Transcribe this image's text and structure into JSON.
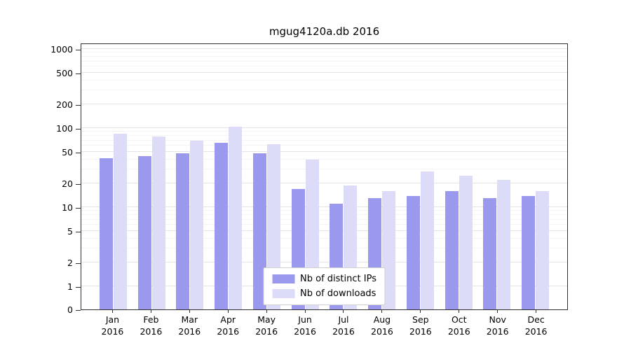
{
  "chart_data": {
    "type": "bar",
    "title": "mgug4120a.db 2016",
    "categories": [
      "Jan",
      "Feb",
      "Mar",
      "Apr",
      "May",
      "Jun",
      "Jul",
      "Aug",
      "Sep",
      "Oct",
      "Nov",
      "Dec"
    ],
    "year_label": "2016",
    "series": [
      {
        "name": "Nb of distinct IPs",
        "color": "#9a99ee",
        "values": [
          42,
          44,
          48,
          65,
          48,
          17,
          11,
          13,
          14,
          16,
          13,
          14
        ]
      },
      {
        "name": "Nb of downloads",
        "color": "#dcdbf8",
        "values": [
          85,
          78,
          70,
          105,
          62,
          40,
          19,
          16,
          28,
          25,
          22,
          16
        ]
      }
    ],
    "yticks": [
      0,
      1,
      2,
      5,
      10,
      20,
      50,
      100,
      200,
      500,
      1000
    ],
    "yscale": "symlog",
    "ylim": [
      0,
      1000
    ],
    "grid": true,
    "legend_position": "bottom-center"
  }
}
